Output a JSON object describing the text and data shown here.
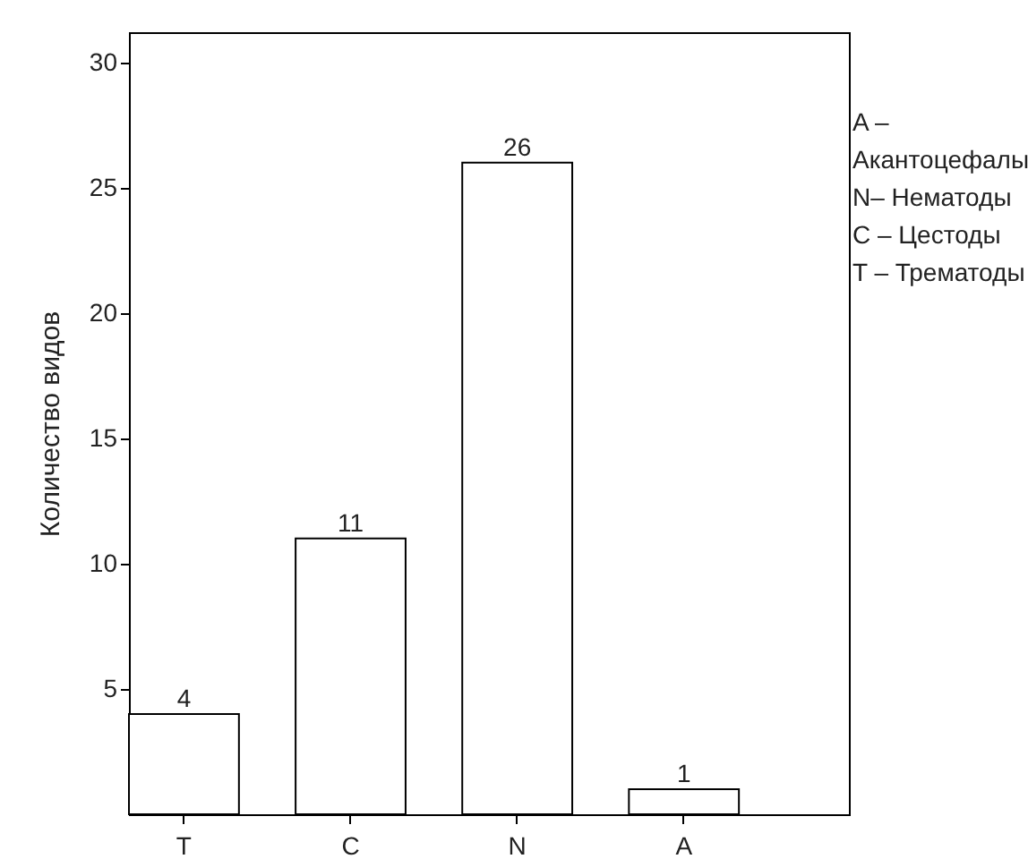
{
  "chart_data": {
    "type": "bar",
    "ylabel": "Количество видов",
    "categories": [
      "T",
      "C",
      "N",
      "A"
    ],
    "values": [
      4,
      11,
      26,
      1
    ],
    "colors": [
      "#ffffff",
      "#ffffff",
      "#ffffff",
      "#ffffff"
    ],
    "ylim": [
      0,
      31.2
    ],
    "yticks": [
      5,
      10,
      15,
      20,
      25,
      30
    ],
    "grid": false,
    "data_labels": true,
    "annotations": [
      "A – Акантоцефалы",
      "N– Нематоды",
      "C – Цестоды",
      "T – Трематоды"
    ]
  }
}
